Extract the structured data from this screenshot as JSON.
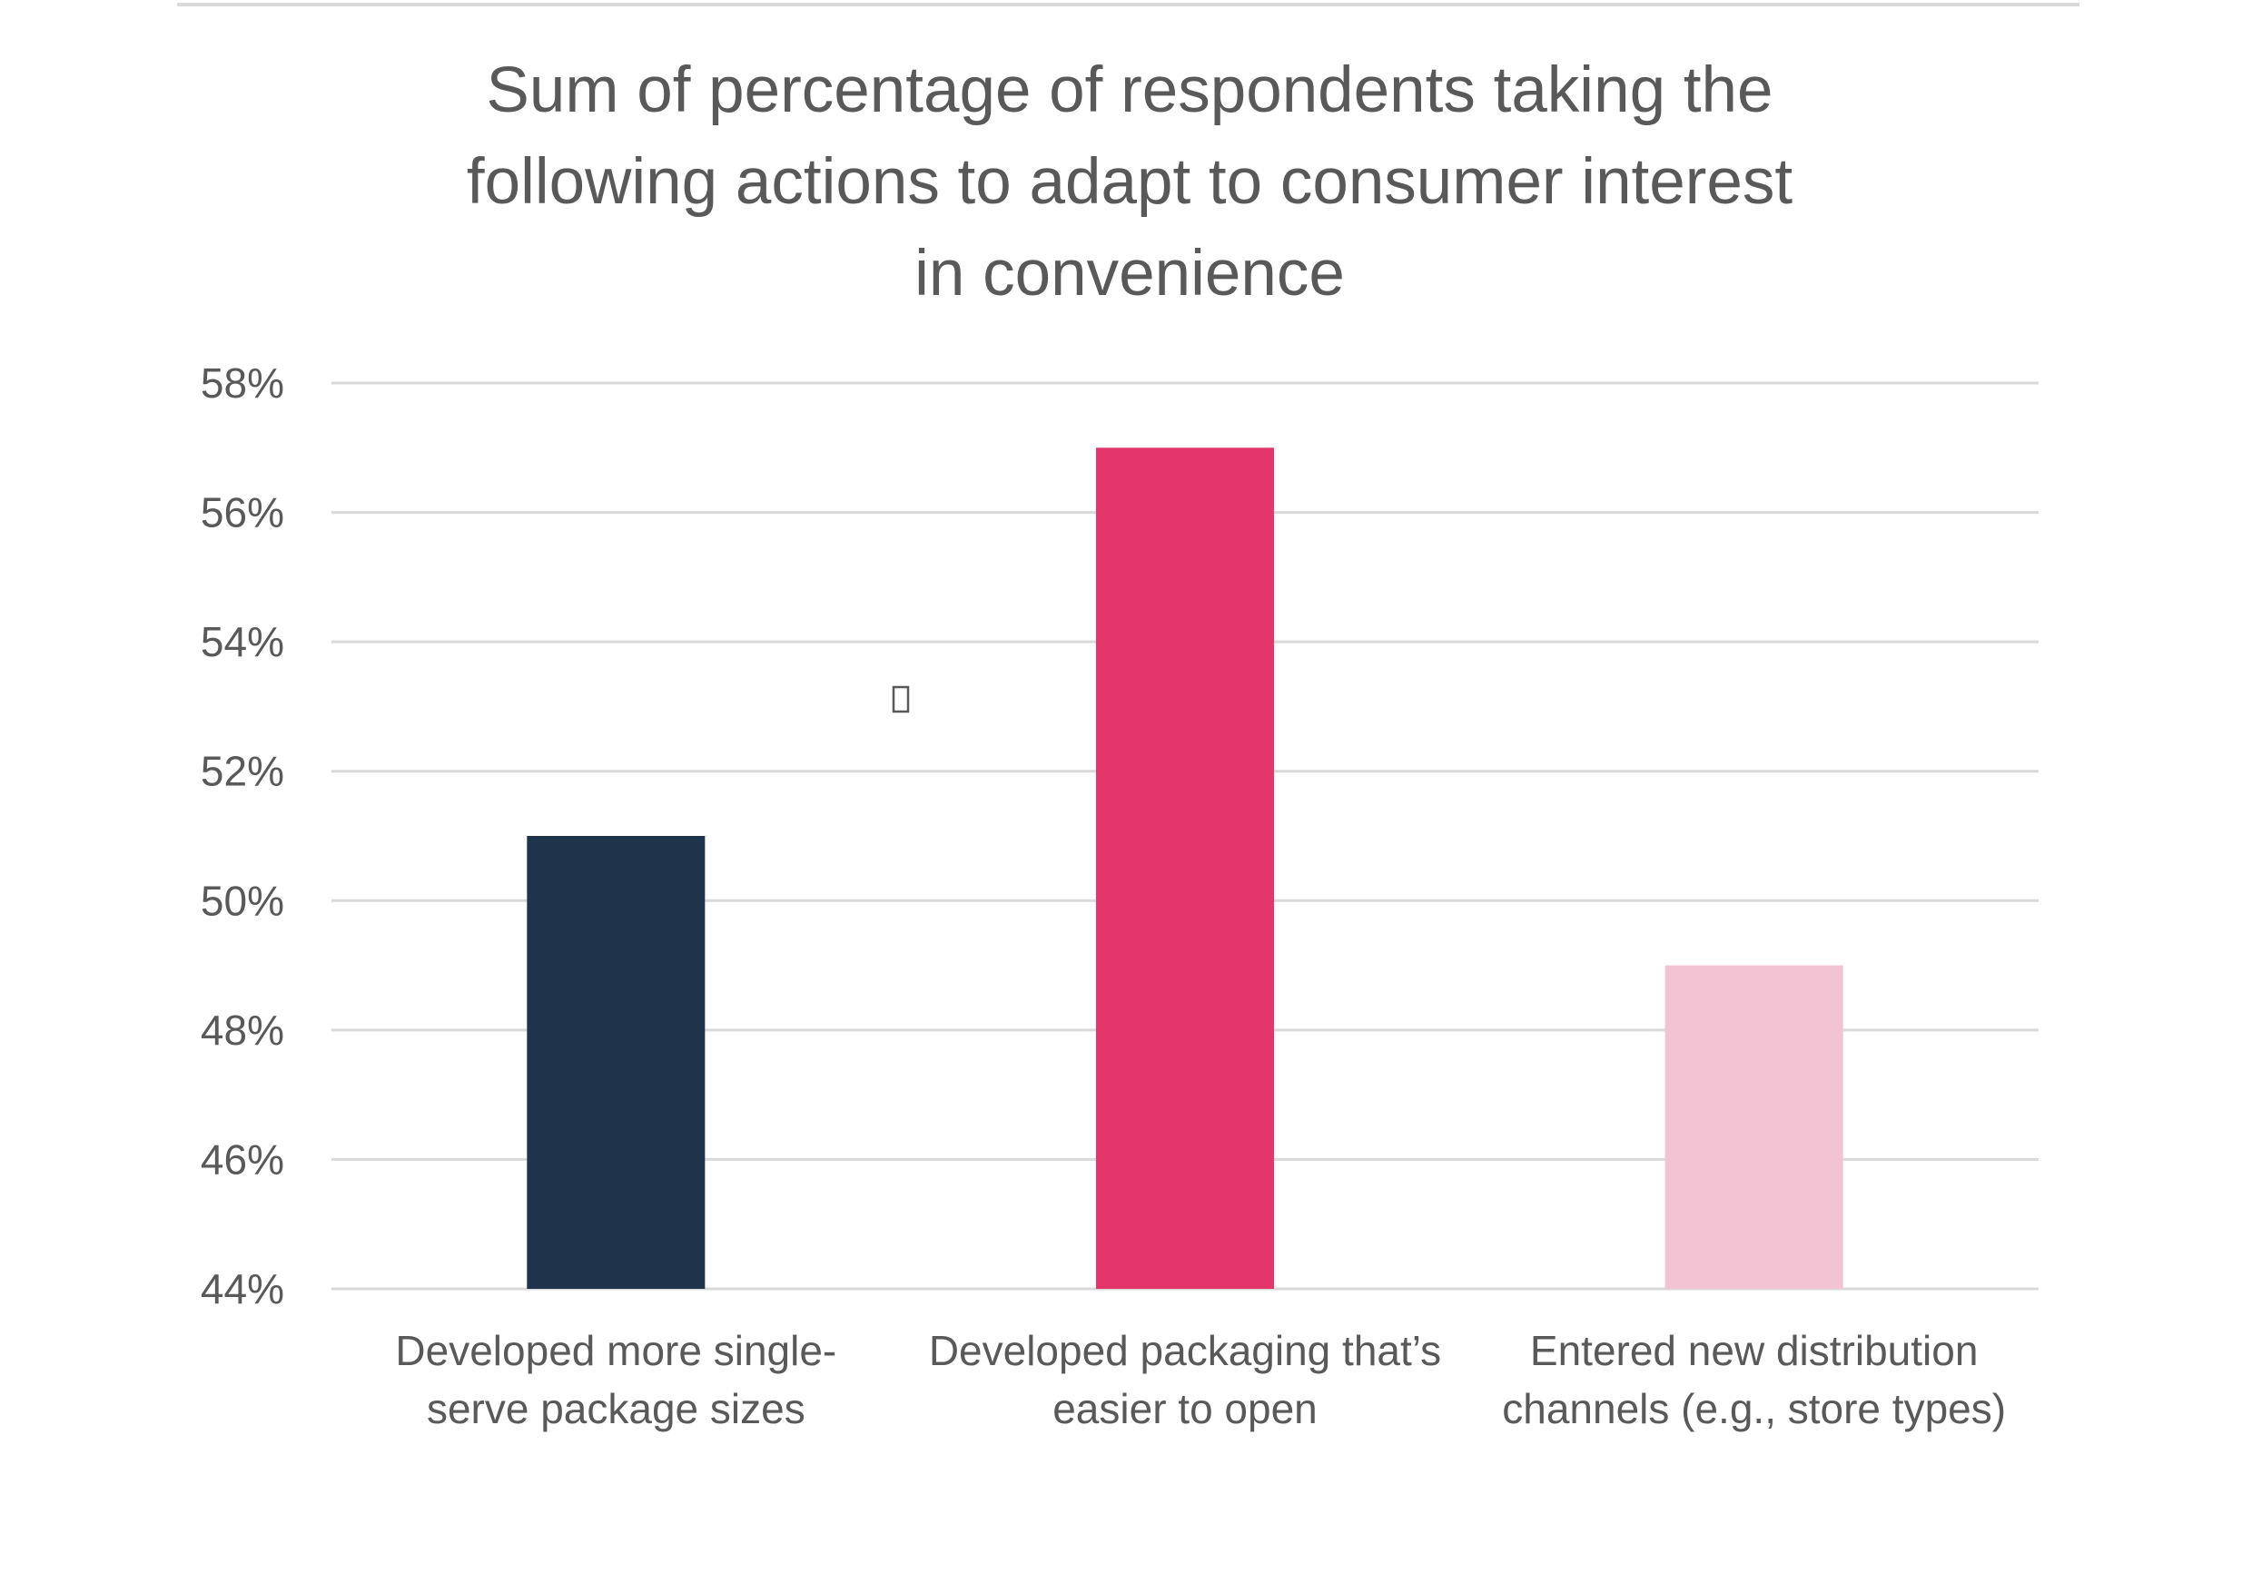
{
  "chart_data": {
    "type": "bar",
    "title": "Sum of percentage of respondents taking the following actions to adapt to consumer interest in convenience",
    "title_lines": [
      "Sum of percentage of respondents taking the",
      "following actions to adapt to consumer interest",
      "in convenience"
    ],
    "categories": [
      "Developed more single-serve package sizes",
      "Developed packaging that’s easier to open",
      "Entered new distribution channels (e.g., store types)"
    ],
    "category_label_lines": [
      [
        "Developed more single-",
        "serve package sizes"
      ],
      [
        "Developed packaging that’s",
        "easier to open"
      ],
      [
        "Entered new distribution",
        "channels (e.g., store types)"
      ]
    ],
    "values": [
      51,
      57,
      49
    ],
    "value_unit": "%",
    "bar_colors": [
      "#1f334a",
      "#e3366b",
      "#f2c4d3"
    ],
    "ylim": [
      44,
      58
    ],
    "yticks": [
      44,
      46,
      48,
      50,
      52,
      54,
      56,
      58
    ],
    "ytick_labels": [
      "44%",
      "46%",
      "48%",
      "50%",
      "52%",
      "54%",
      "56%",
      "58%"
    ],
    "xlabel": "",
    "ylabel": "",
    "grid": true,
    "legend": "none"
  }
}
